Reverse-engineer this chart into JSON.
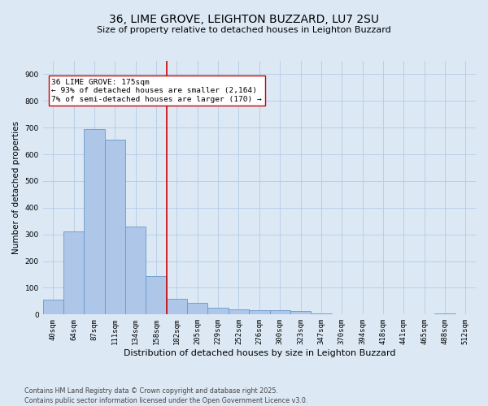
{
  "title1": "36, LIME GROVE, LEIGHTON BUZZARD, LU7 2SU",
  "title2": "Size of property relative to detached houses in Leighton Buzzard",
  "xlabel": "Distribution of detached houses by size in Leighton Buzzard",
  "ylabel": "Number of detached properties",
  "categories": [
    "40sqm",
    "64sqm",
    "87sqm",
    "111sqm",
    "134sqm",
    "158sqm",
    "182sqm",
    "205sqm",
    "229sqm",
    "252sqm",
    "276sqm",
    "300sqm",
    "323sqm",
    "347sqm",
    "370sqm",
    "394sqm",
    "418sqm",
    "441sqm",
    "465sqm",
    "488sqm",
    "512sqm"
  ],
  "values": [
    55,
    310,
    695,
    655,
    330,
    145,
    60,
    45,
    25,
    20,
    15,
    15,
    12,
    3,
    0,
    0,
    0,
    0,
    0,
    3,
    0
  ],
  "bar_color": "#aec6e8",
  "bar_edge_color": "#6699cc",
  "background_color": "#dce9f5",
  "grid_color": "#b8cfe8",
  "vline_x": 5.5,
  "vline_color": "#cc0000",
  "annotation_text": "36 LIME GROVE: 175sqm\n← 93% of detached houses are smaller (2,164)\n7% of semi-detached houses are larger (170) →",
  "annotation_box_color": "#ffffff",
  "annotation_box_edge": "#cc0000",
  "annotation_fontsize": 6.8,
  "footer1": "Contains HM Land Registry data © Crown copyright and database right 2025.",
  "footer2": "Contains public sector information licensed under the Open Government Licence v3.0.",
  "ylim": [
    0,
    950
  ],
  "yticks": [
    0,
    100,
    200,
    300,
    400,
    500,
    600,
    700,
    800,
    900
  ],
  "title1_fontsize": 10,
  "title2_fontsize": 8,
  "xlabel_fontsize": 8,
  "ylabel_fontsize": 7.5,
  "footer_fontsize": 5.8,
  "tick_fontsize": 6.5
}
